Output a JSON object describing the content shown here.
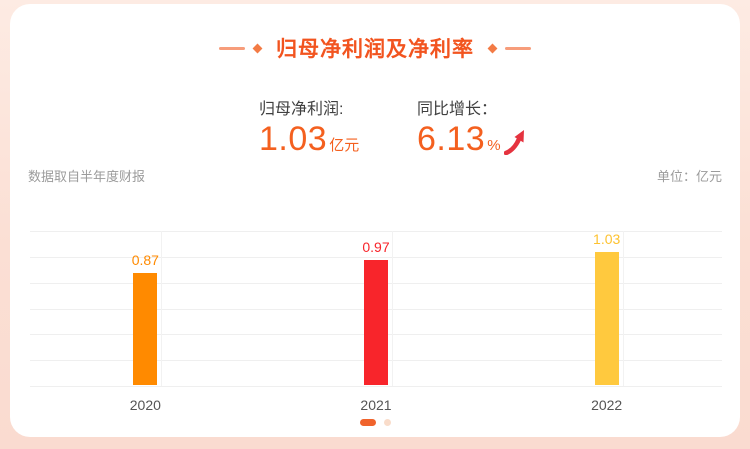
{
  "header": {
    "title": "归母净利润及净利率"
  },
  "stats": [
    {
      "label": "归母净利润:",
      "value": "1.03",
      "unit": "亿元"
    },
    {
      "label": "同比增长：",
      "value": "6.13",
      "unit": "%",
      "trend": "up"
    }
  ],
  "meta": {
    "source_note": "数据取自半年度财报",
    "unit_note": "单位：亿元"
  },
  "chart_data": {
    "type": "bar",
    "categories": [
      "2020",
      "2021",
      "2022"
    ],
    "values": [
      0.87,
      0.97,
      1.03
    ],
    "bar_colors": [
      "#ff8a00",
      "#f8252b",
      "#ffc93e"
    ],
    "label_colors": [
      "#ff8a00",
      "#f8252b",
      "#fdc230"
    ],
    "title": "归母净利润及净利率",
    "xlabel": "",
    "ylabel": "",
    "ylim": [
      0,
      1.2
    ],
    "grid": true,
    "legend": "none",
    "unit": "亿元"
  },
  "pagination": {
    "active_index": 0,
    "count": 2
  },
  "colors": {
    "accent": "#f2541f",
    "value_text": "#f4601f",
    "trend_arrow": "#e5333f",
    "page_background": "#fbdfd4",
    "card_background": "#ffffff",
    "gridline": "#efefef",
    "axis_label": "#555555",
    "meta_text": "#9b9b9b",
    "dot_active": "#f0632c",
    "dot_inactive": "#f9dcca"
  }
}
